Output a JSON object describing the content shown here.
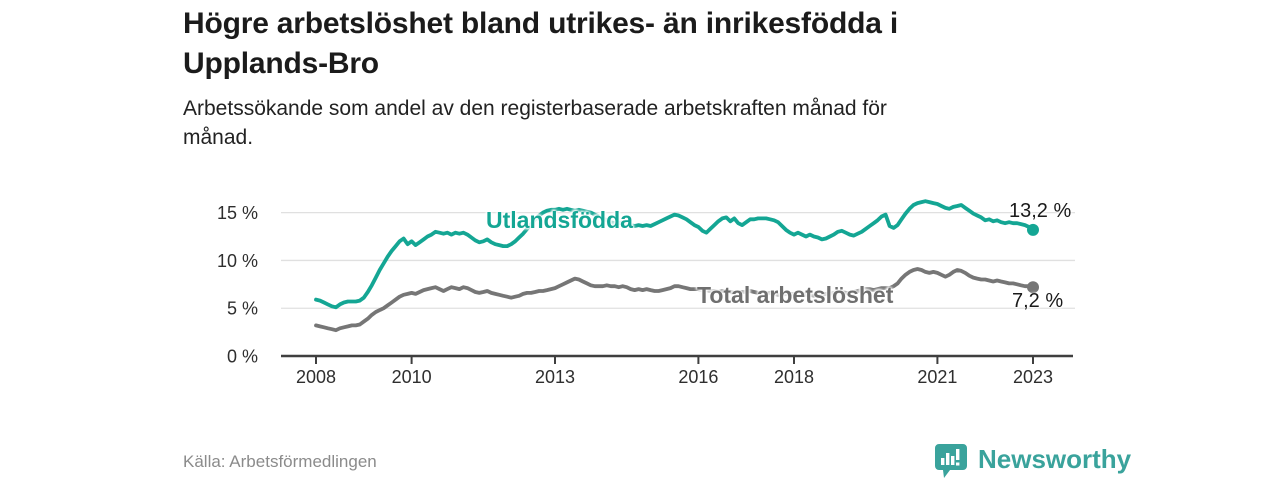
{
  "header": {
    "title": "Högre arbetslöshet bland utrikes- än inrikesfödda i\nUpplands-Bro",
    "subtitle": "Arbetssökande som andel av den registerbaserade arbetskraften månad för\nmånad."
  },
  "footer": {
    "source": "Källa: Arbetsförmedlingen",
    "brand": "Newsworthy"
  },
  "colors": {
    "accent_teal": "#14a694",
    "line_gray": "#767676",
    "brand_teal": "#3aa39c",
    "axis": "#3f3f3f",
    "gridline": "#e0e0e0"
  },
  "chart_data": {
    "type": "line",
    "x_start": "2008-01",
    "x_end": "2023-01",
    "x_interval": "month",
    "grid": "horizontal",
    "legend_position": "inline-labels",
    "ylim": [
      0,
      17
    ],
    "xticks": [
      2008,
      2010,
      2013,
      2016,
      2018,
      2021,
      2023
    ],
    "yticks": [
      {
        "value": 0,
        "label": "0 %"
      },
      {
        "value": 5,
        "label": "5 %"
      },
      {
        "value": 10,
        "label": "10 %"
      },
      {
        "value": 15,
        "label": "15 %"
      }
    ],
    "series": [
      {
        "name": "Utlandsfödda",
        "color": "#14a694",
        "end_label": "13,2 %",
        "end_value": 13.2,
        "values": [
          5.9,
          5.8,
          5.6,
          5.4,
          5.2,
          5.1,
          5.4,
          5.6,
          5.7,
          5.7,
          5.7,
          5.8,
          6.1,
          6.7,
          7.4,
          8.2,
          9.0,
          9.7,
          10.4,
          11.0,
          11.5,
          12.0,
          12.3,
          11.7,
          12.0,
          11.6,
          11.9,
          12.2,
          12.5,
          12.7,
          13.0,
          12.9,
          12.8,
          12.9,
          12.7,
          12.9,
          12.8,
          12.9,
          12.7,
          12.4,
          12.1,
          11.9,
          12.0,
          12.2,
          11.9,
          11.7,
          11.6,
          11.5,
          11.5,
          11.7,
          12.0,
          12.4,
          12.8,
          13.3,
          13.8,
          14.3,
          14.7,
          15.0,
          15.2,
          15.3,
          15.3,
          15.4,
          15.3,
          15.4,
          15.3,
          15.2,
          15.3,
          15.2,
          15.1,
          15.0,
          14.8,
          14.6,
          14.4,
          14.2,
          14.0,
          13.9,
          13.9,
          14.0,
          13.9,
          13.7,
          13.6,
          13.7,
          13.6,
          13.7,
          13.6,
          13.8,
          14.0,
          14.2,
          14.4,
          14.6,
          14.8,
          14.7,
          14.5,
          14.3,
          14.0,
          13.7,
          13.5,
          13.1,
          12.9,
          13.3,
          13.7,
          14.1,
          14.4,
          14.5,
          14.1,
          14.4,
          13.9,
          13.7,
          14.0,
          14.3,
          14.3,
          14.4,
          14.4,
          14.4,
          14.3,
          14.2,
          14.0,
          13.6,
          13.2,
          12.9,
          12.7,
          12.9,
          12.7,
          12.5,
          12.7,
          12.5,
          12.4,
          12.2,
          12.3,
          12.5,
          12.7,
          13.0,
          13.1,
          12.9,
          12.7,
          12.6,
          12.8,
          13.0,
          13.3,
          13.6,
          13.9,
          14.2,
          14.6,
          14.8,
          13.6,
          13.4,
          13.7,
          14.3,
          14.9,
          15.4,
          15.8,
          16.0,
          16.1,
          16.2,
          16.1,
          16.0,
          15.9,
          15.7,
          15.5,
          15.4,
          15.6,
          15.7,
          15.8,
          15.5,
          15.2,
          14.9,
          14.7,
          14.5,
          14.2,
          14.3,
          14.1,
          14.2,
          14.0,
          13.9,
          14.0,
          13.9,
          13.9,
          13.8,
          13.7,
          13.5,
          13.2
        ]
      },
      {
        "name": "Total arbetslöshet",
        "color": "#767676",
        "end_label": "7,2 %",
        "end_value": 7.2,
        "values": [
          3.2,
          3.1,
          3.0,
          2.9,
          2.8,
          2.7,
          2.9,
          3.0,
          3.1,
          3.2,
          3.2,
          3.3,
          3.6,
          3.9,
          4.3,
          4.6,
          4.8,
          5.0,
          5.3,
          5.6,
          5.9,
          6.2,
          6.4,
          6.5,
          6.6,
          6.5,
          6.7,
          6.9,
          7.0,
          7.1,
          7.2,
          7.0,
          6.8,
          7.0,
          7.2,
          7.1,
          7.0,
          7.2,
          7.1,
          6.9,
          6.7,
          6.6,
          6.7,
          6.8,
          6.6,
          6.5,
          6.4,
          6.3,
          6.2,
          6.1,
          6.2,
          6.3,
          6.5,
          6.6,
          6.6,
          6.7,
          6.8,
          6.8,
          6.9,
          7.0,
          7.1,
          7.3,
          7.5,
          7.7,
          7.9,
          8.1,
          8.0,
          7.8,
          7.6,
          7.4,
          7.3,
          7.3,
          7.3,
          7.4,
          7.3,
          7.3,
          7.2,
          7.3,
          7.2,
          7.0,
          6.9,
          7.0,
          6.9,
          7.0,
          6.9,
          6.8,
          6.8,
          6.9,
          7.0,
          7.1,
          7.3,
          7.3,
          7.2,
          7.1,
          7.0,
          7.0,
          7.0,
          6.9,
          6.9,
          6.8,
          6.8,
          6.7,
          6.8,
          6.8,
          6.7,
          6.6,
          6.6,
          6.7,
          6.7,
          6.8,
          6.7,
          6.6,
          6.6,
          6.5,
          6.6,
          6.5,
          6.4,
          6.4,
          6.5,
          6.5,
          6.5,
          6.6,
          6.5,
          6.4,
          6.4,
          6.3,
          6.4,
          6.4,
          6.5,
          6.5,
          6.6,
          6.7,
          6.7,
          6.6,
          6.6,
          6.7,
          6.8,
          6.9,
          7.0,
          7.0,
          6.9,
          7.0,
          7.1,
          7.1,
          7.1,
          7.3,
          7.6,
          8.1,
          8.5,
          8.8,
          9.0,
          9.1,
          9.0,
          8.8,
          8.7,
          8.8,
          8.7,
          8.5,
          8.3,
          8.5,
          8.8,
          9.0,
          8.9,
          8.7,
          8.4,
          8.2,
          8.1,
          8.0,
          8.0,
          7.9,
          7.8,
          7.9,
          7.8,
          7.7,
          7.6,
          7.6,
          7.5,
          7.4,
          7.3,
          7.3,
          7.2
        ]
      }
    ]
  }
}
